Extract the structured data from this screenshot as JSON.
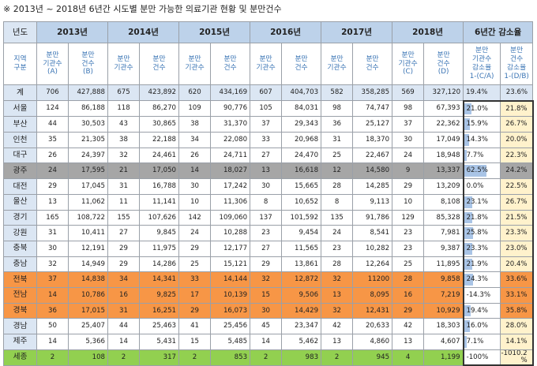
{
  "title": "※ 2013년 ~ 2018년 6년간 시도별 분만 가능한 의료기관 현황 및 분만건수",
  "header": {
    "corner": "년도",
    "years": [
      "2013년",
      "2014년",
      "2015년",
      "2016년",
      "2017년",
      "2018년"
    ],
    "change": "6년간 감소율",
    "region_label": "지역\n구분",
    "sub": [
      "분만\n기관수\n(A)",
      "분만\n건수\n(B)",
      "분만\n기관수",
      "분만\n건수",
      "분만\n기관수",
      "분만\n건수",
      "분만\n기관수",
      "분만\n건수",
      "분만\n기관수",
      "분만\n건수",
      "분만\n기관수\n(C)",
      "분만\n건수\n(D)",
      "분만\n기관수\n감소율\n1-(C/A)",
      "분만\n건수\n감소율\n1-(D/B)"
    ]
  },
  "rows": [
    {
      "region": "계",
      "style": "total",
      "values": [
        "706",
        "427,888",
        "675",
        "423,892",
        "620",
        "434,169",
        "607",
        "404,703",
        "582",
        "358,285",
        "569",
        "327,120"
      ],
      "rate_c": "19.4%",
      "rate_d": "23.6%",
      "bar": 0.194
    },
    {
      "region": "서울",
      "style": "",
      "values": [
        "124",
        "86,188",
        "118",
        "86,270",
        "109",
        "90,776",
        "105",
        "84,031",
        "98",
        "74,747",
        "98",
        "67,393"
      ],
      "rate_c": "21.0%",
      "rate_d": "21.8%",
      "bar": 0.21
    },
    {
      "region": "부산",
      "style": "",
      "values": [
        "44",
        "30,503",
        "43",
        "30,865",
        "38",
        "31,370",
        "37",
        "29,343",
        "36",
        "25,127",
        "37",
        "22,362"
      ],
      "rate_c": "15.9%",
      "rate_d": "26.7%",
      "bar": 0.159
    },
    {
      "region": "인천",
      "style": "",
      "values": [
        "35",
        "21,305",
        "38",
        "22,188",
        "34",
        "22,080",
        "33",
        "20,968",
        "31",
        "18,370",
        "30",
        "17,049"
      ],
      "rate_c": "14.3%",
      "rate_d": "20.0%",
      "bar": 0.143
    },
    {
      "region": "대구",
      "style": "",
      "values": [
        "26",
        "24,397",
        "32",
        "24,461",
        "26",
        "24,711",
        "27",
        "24,470",
        "25",
        "22,467",
        "24",
        "18,948"
      ],
      "rate_c": "7.7%",
      "rate_d": "22.3%",
      "bar": 0.077
    },
    {
      "region": "광주",
      "style": "gray",
      "values": [
        "24",
        "17,595",
        "21",
        "17,050",
        "14",
        "18,027",
        "13",
        "16,618",
        "12",
        "14,580",
        "9",
        "13,337"
      ],
      "rate_c": "62.5%",
      "rate_d": "24.2%",
      "bar": 0.625
    },
    {
      "region": "대전",
      "style": "",
      "values": [
        "29",
        "17,045",
        "31",
        "16,788",
        "30",
        "17,242",
        "30",
        "15,665",
        "28",
        "14,285",
        "29",
        "13,209"
      ],
      "rate_c": "0.0%",
      "rate_d": "22.5%",
      "bar": 0.0
    },
    {
      "region": "울산",
      "style": "",
      "values": [
        "13",
        "11,062",
        "11",
        "11,141",
        "10",
        "11,306",
        "8",
        "10,652",
        "8",
        "9,113",
        "10",
        "8,108"
      ],
      "rate_c": "23.1%",
      "rate_d": "26.7%",
      "bar": 0.231
    },
    {
      "region": "경기",
      "style": "",
      "values": [
        "165",
        "108,722",
        "155",
        "107,626",
        "142",
        "109,060",
        "137",
        "101,592",
        "135",
        "91,786",
        "129",
        "85,328"
      ],
      "rate_c": "21.8%",
      "rate_d": "21.5%",
      "bar": 0.218
    },
    {
      "region": "강원",
      "style": "",
      "values": [
        "31",
        "10,411",
        "27",
        "9,845",
        "24",
        "10,288",
        "23",
        "9,454",
        "24",
        "8,541",
        "23",
        "7,981"
      ],
      "rate_c": "25.8%",
      "rate_d": "23.3%",
      "bar": 0.258
    },
    {
      "region": "충북",
      "style": "",
      "values": [
        "30",
        "12,191",
        "29",
        "11,975",
        "29",
        "12,177",
        "27",
        "11,565",
        "23",
        "10,282",
        "23",
        "9,387"
      ],
      "rate_c": "23.3%",
      "rate_d": "23.0%",
      "bar": 0.233
    },
    {
      "region": "충남",
      "style": "",
      "values": [
        "32",
        "14,949",
        "29",
        "14,286",
        "25",
        "15,121",
        "29",
        "13,861",
        "28",
        "12,264",
        "25",
        "11,895"
      ],
      "rate_c": "21.9%",
      "rate_d": "20.4%",
      "bar": 0.219
    },
    {
      "region": "전북",
      "style": "orange",
      "values": [
        "37",
        "14,838",
        "34",
        "14,341",
        "33",
        "14,144",
        "32",
        "12,872",
        "32",
        "11200",
        "28",
        "9,858"
      ],
      "rate_c": "24.3%",
      "rate_d": "33.6%",
      "bar": 0.243
    },
    {
      "region": "전남",
      "style": "orange",
      "values": [
        "14",
        "10,786",
        "16",
        "9,825",
        "17",
        "10,139",
        "15",
        "9,506",
        "13",
        "8,095",
        "16",
        "7,219"
      ],
      "rate_c": "-14.3%",
      "rate_d": "33.1%",
      "bar": 0.0
    },
    {
      "region": "경북",
      "style": "orange",
      "values": [
        "36",
        "17,015",
        "31",
        "16,251",
        "29",
        "16,073",
        "30",
        "14,429",
        "32",
        "12,431",
        "29",
        "10,929"
      ],
      "rate_c": "19.4%",
      "rate_d": "35.8%",
      "bar": 0.194
    },
    {
      "region": "경남",
      "style": "",
      "values": [
        "50",
        "25,407",
        "44",
        "25,463",
        "41",
        "25,456",
        "45",
        "23,347",
        "42",
        "20,633",
        "42",
        "18,303"
      ],
      "rate_c": "16.0%",
      "rate_d": "28.0%",
      "bar": 0.16
    },
    {
      "region": "제주",
      "style": "",
      "values": [
        "14",
        "5,366",
        "14",
        "5,431",
        "15",
        "5,485",
        "14",
        "5,462",
        "13",
        "4,860",
        "13",
        "4,607"
      ],
      "rate_c": "7.1%",
      "rate_d": "14.1%",
      "bar": 0.071
    },
    {
      "region": "세종",
      "style": "green",
      "values": [
        "2",
        "108",
        "2",
        "317",
        "2",
        "853",
        "2",
        "983",
        "2",
        "945",
        "4",
        "1,199"
      ],
      "rate_c": "-100%",
      "rate_d": "-1010.2\n%",
      "bar": 0.0
    }
  ],
  "colors": {
    "header_blue": "#bdd2ea",
    "label_blue": "#dbe6f3",
    "gray_row": "#a6a6a6",
    "orange_row": "#f79646",
    "green_row": "#92d050",
    "rate_bar": "#a9c4e6",
    "rate_d_bg": "#fff2cc"
  }
}
